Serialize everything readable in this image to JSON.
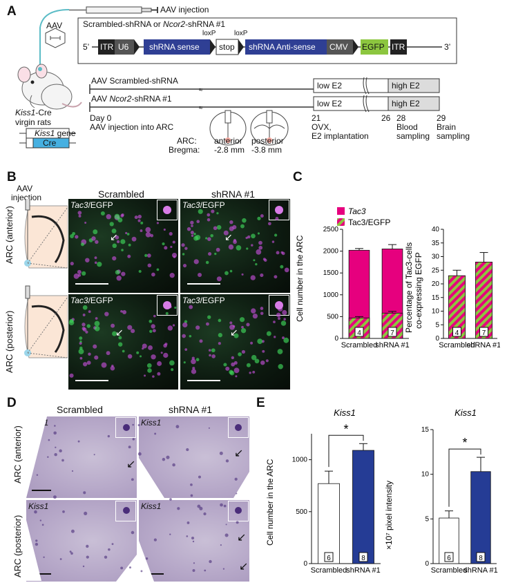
{
  "panels": {
    "A": "A",
    "B": "B",
    "C": "C",
    "D": "D",
    "E": "E"
  },
  "A": {
    "aav_injection": "AAV injection",
    "aav_label": "AAV",
    "construct_title_pre": "Scrambled-shRNA or ",
    "construct_title_gene": "Ncor2",
    "construct_title_post": "-shRNA #1",
    "five_prime": "5’",
    "three_prime": "3’",
    "loxp1": "loxP",
    "loxp2": "loxP",
    "elements": {
      "itr1": "ITR",
      "u6": "U6",
      "sense": "shRNA sense",
      "stop": "stop",
      "antisense": "shRNA Anti-sense",
      "cmv": "CMV",
      "egfp": "EGFP",
      "itr2": "ITR"
    },
    "rat_gene": "Kiss1",
    "rat_label": "-Cre",
    "rat_label2": "virgin rats",
    "gene_box": "Kiss1",
    "gene_box_post": " gene",
    "cre": "Cre",
    "timeline": {
      "row1_label": "AAV Scrambled-shRNA",
      "row2_pre": "AAV ",
      "row2_gene": "Ncor2",
      "row2_post": "-shRNA #1",
      "low_e2": "low E2",
      "high_e2": "high E2",
      "day_label": "Day 0",
      "day_desc": "AAV injection into ARC",
      "d21": "21",
      "d21_desc1": "OVX,",
      "d21_desc2": "E2 implantation",
      "d26": "26",
      "d28": "28",
      "d28_desc1": "Blood",
      "d28_desc2": "sampling",
      "d29": "29",
      "d29_desc1": "Brain",
      "d29_desc2": "sampling",
      "arc": "ARC:",
      "bregma": "Bregma:",
      "anterior": "anterior",
      "anterior_mm": "-2.8 mm",
      "posterior": "posterior",
      "posterior_mm": "-3.8 mm"
    }
  },
  "B": {
    "aav_injection1": "AAV",
    "aav_injection2": "injection",
    "col1": "Scrambled",
    "col2": "shRNA #1",
    "row1": "ARC (anterior)",
    "row2": "ARC (posterior)",
    "img_gene": "Tac3",
    "img_label_post": "/EGFP"
  },
  "chart_data": [
    {
      "type": "bar",
      "id": "C-left",
      "categories": [
        "Scrambled",
        "shRNA #1"
      ],
      "series": [
        {
          "name": "Tac3",
          "values": [
            2020,
            2050
          ],
          "errors": [
            40,
            100
          ],
          "color": "#e6007e"
        },
        {
          "name": "Tac3/EGFP",
          "values": [
            470,
            580
          ],
          "errors": [
            30,
            40
          ],
          "color": "hatch"
        }
      ],
      "n": [
        "4",
        "7"
      ],
      "ylabel": "Cell number in the ARC",
      "ylim": [
        0,
        2500
      ],
      "yticks": [
        "0",
        "500",
        "1000",
        "1500",
        "2000",
        "2500"
      ],
      "legend": [
        "Tac3",
        "Tac3/EGFP"
      ]
    },
    {
      "type": "bar",
      "id": "C-right",
      "categories": [
        "Scrambled",
        "shRNA #1"
      ],
      "values": [
        23,
        28
      ],
      "errors": [
        2,
        3.5
      ],
      "n": [
        "4",
        "7"
      ],
      "ylabel1": "Percentage of Tac3-cells",
      "ylabel2": "co-expressing EGFP",
      "ylim": [
        0,
        40
      ],
      "yticks": [
        "0",
        "5",
        "10",
        "15",
        "20",
        "25",
        "30",
        "35",
        "40"
      ]
    },
    {
      "type": "bar",
      "id": "E-left",
      "title": "Kiss1",
      "categories": [
        "Scrambled",
        "shRNA #1"
      ],
      "values": [
        770,
        1090
      ],
      "errors": [
        120,
        65
      ],
      "colors": [
        "#ffffff",
        "#253c95"
      ],
      "n": [
        "6",
        "8"
      ],
      "ylabel": "Cell number in the ARC",
      "ylim": [
        0,
        1250
      ],
      "yticks": [
        "0",
        "500",
        "1000"
      ],
      "sig": "*"
    },
    {
      "type": "bar",
      "id": "E-right",
      "title": "Kiss1",
      "categories": [
        "Scrambled",
        "shRNA #1"
      ],
      "values": [
        5.1,
        10.3
      ],
      "errors": [
        0.8,
        1.6
      ],
      "colors": [
        "#ffffff",
        "#253c95"
      ],
      "n": [
        "6",
        "8"
      ],
      "ylabel": "×10⁷ pixel intensity",
      "ylim": [
        0,
        15
      ],
      "yticks": [
        "0",
        "5",
        "10",
        "15"
      ],
      "sig": "*"
    }
  ],
  "D": {
    "col1": "Scrambled",
    "col2": "shRNA #1",
    "row1": "ARC (anterior)",
    "row2": "ARC (posterior)",
    "img_label": "Kiss1"
  }
}
